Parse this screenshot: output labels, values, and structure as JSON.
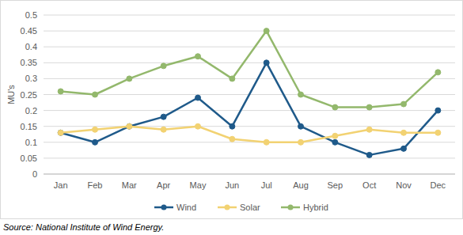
{
  "chart_data": {
    "type": "line",
    "y_label": "MU's",
    "source": "Source: National Institute of Wind Energy.",
    "categories": [
      "Jan",
      "Feb",
      "Mar",
      "Apr",
      "May",
      "Jun",
      "Jul",
      "Aug",
      "Sep",
      "Oct",
      "Nov",
      "Dec"
    ],
    "series": [
      {
        "name": "Wind",
        "color": "#1f5a8a",
        "values": [
          0.13,
          0.1,
          0.15,
          0.18,
          0.24,
          0.15,
          0.35,
          0.15,
          0.1,
          0.06,
          0.08,
          0.2
        ]
      },
      {
        "name": "Solar",
        "color": "#f2d272",
        "values": [
          0.13,
          0.14,
          0.15,
          0.14,
          0.15,
          0.11,
          0.1,
          0.1,
          0.12,
          0.14,
          0.13,
          0.13
        ]
      },
      {
        "name": "Hybrid",
        "color": "#93b86c",
        "values": [
          0.26,
          0.25,
          0.3,
          0.34,
          0.37,
          0.3,
          0.45,
          0.25,
          0.21,
          0.21,
          0.22,
          0.32
        ]
      }
    ],
    "ylim": [
      0,
      0.5
    ],
    "yticks": [
      0,
      0.05,
      0.1,
      0.15,
      0.2,
      0.25,
      0.3,
      0.35,
      0.4,
      0.45,
      0.5
    ],
    "grid": true,
    "legend": "bottom",
    "marker": "circle"
  }
}
